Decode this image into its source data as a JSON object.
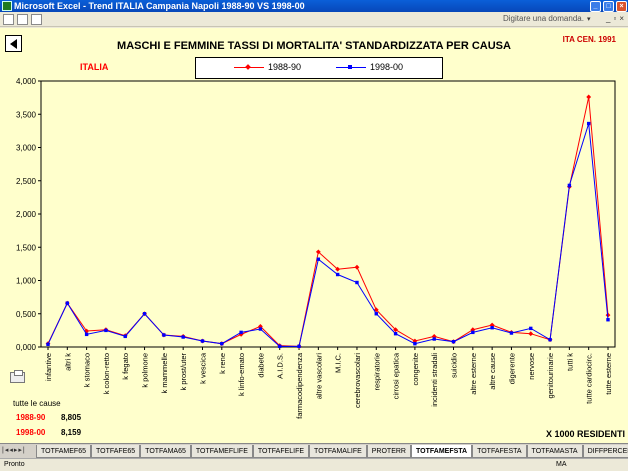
{
  "window": {
    "title": "Microsoft Excel - Trend ITALIA Campania Napoli 1988-90 VS 1998-00",
    "ask_placeholder": "Digitare una domanda."
  },
  "chart": {
    "title": "MASCHI E FEMMINE TASSI DI MORTALITA' STANDARDIZZATA PER CAUSA",
    "reference": "ITA CEN. 1991",
    "country": "ITALIA",
    "unit_note": "X 1000 RESIDENTI",
    "totals_label": "tutte le cause",
    "totals": [
      {
        "period": "1988-90",
        "value": "8,805",
        "color": "#ff0000"
      },
      {
        "period": "1998-00",
        "value": "8,159",
        "color": "#ff0000"
      }
    ]
  },
  "chart_data": {
    "type": "line",
    "title": "MASCHI E FEMMINE TASSI DI MORTALITA' STANDARDIZZATA PER CAUSA",
    "ylim": [
      0,
      4
    ],
    "yticks": [
      "0,000",
      "0,500",
      "1,000",
      "1,500",
      "2,000",
      "2,500",
      "3,000",
      "3,500",
      "4,000"
    ],
    "grid": false,
    "legend_position": "top",
    "categories": [
      "infantive",
      "altri k",
      "k stomaco",
      "k colon-retto",
      "k fegato",
      "k polmone",
      "k mammelle",
      "k prost/uter",
      "k vescica",
      "k rene",
      "k linfo-emato",
      "diabete",
      "A.I.D.S.",
      "farmacodipendenza",
      "altre vascolari",
      "M.I.C.",
      "cerebrovascolari",
      "respiratorie",
      "cirrosi epatica",
      "congenite",
      "incidenti stradali",
      "suicidio",
      "altre esterne",
      "altre cause",
      "digerente",
      "nervose",
      "genitourinarie",
      "tutti k",
      "tutte cardiocirc.",
      "tutte esterne"
    ],
    "series": [
      {
        "name": "1988-90",
        "color": "#ff0000",
        "values": [
          0.05,
          0.66,
          0.24,
          0.26,
          0.17,
          0.5,
          0.18,
          0.16,
          0.09,
          0.05,
          0.19,
          0.31,
          0.02,
          0.01,
          1.43,
          1.17,
          1.2,
          0.56,
          0.26,
          0.09,
          0.16,
          0.08,
          0.26,
          0.33,
          0.22,
          0.2,
          0.11,
          2.41,
          3.76,
          0.48
        ]
      },
      {
        "name": "1998-00",
        "color": "#0000ff",
        "values": [
          0.04,
          0.66,
          0.19,
          0.25,
          0.16,
          0.5,
          0.18,
          0.15,
          0.09,
          0.05,
          0.22,
          0.27,
          0.01,
          0.01,
          1.32,
          1.09,
          0.97,
          0.5,
          0.2,
          0.05,
          0.12,
          0.08,
          0.22,
          0.29,
          0.21,
          0.28,
          0.11,
          2.43,
          3.36,
          0.41
        ]
      }
    ]
  },
  "sheet_tabs": [
    "TOTFAMEF65",
    "TOTFAFE65",
    "TOTFAMA65",
    "TOTFAMEFLIFE",
    "TOTFAFELIFE",
    "TOTFAMALIFE",
    "PROTERR",
    "TOTFAMEFSTA",
    "TOTFAFESTA",
    "TOTFAMASTA",
    "DIFFPERCENTFE",
    "DIFFPE"
  ],
  "active_tab": "TOTFAMEFSTA",
  "status": {
    "left": "Pronto",
    "right": "MA"
  }
}
